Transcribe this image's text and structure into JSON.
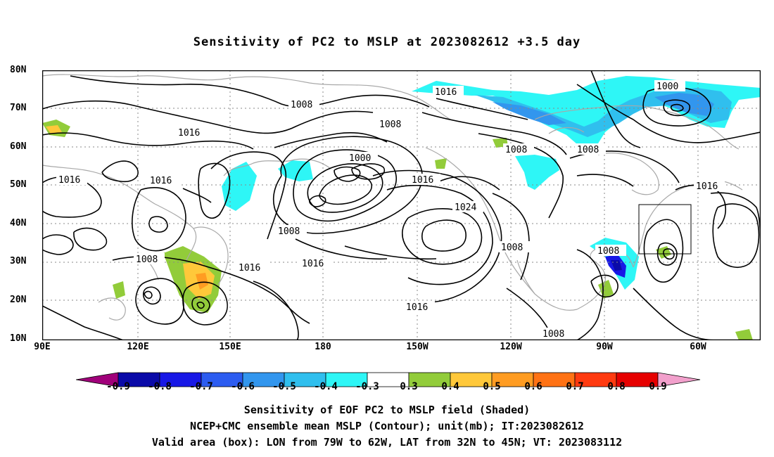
{
  "title": "Sensitivity of PC2 to MSLP at 2023082612 +3.5 day",
  "lat_ticks": [
    "80N",
    "70N",
    "60N",
    "50N",
    "40N",
    "30N",
    "20N",
    "10N"
  ],
  "lon_ticks": [
    "90E",
    "120E",
    "150E",
    "180",
    "150W",
    "120W",
    "90W",
    "60W"
  ],
  "isobar_labels": [
    {
      "text": "1016"
    },
    {
      "text": "1000"
    },
    {
      "text": "1008"
    },
    {
      "text": "1008"
    },
    {
      "text": "1016"
    },
    {
      "text": "1008"
    },
    {
      "text": "1000"
    },
    {
      "text": "1008"
    },
    {
      "text": "1008"
    },
    {
      "text": "1016"
    },
    {
      "text": "1016"
    },
    {
      "text": "1016"
    },
    {
      "text": "1016"
    },
    {
      "text": "1024"
    },
    {
      "text": "1008"
    },
    {
      "text": "1008"
    },
    {
      "text": "1016"
    },
    {
      "text": "1016"
    },
    {
      "text": "1008"
    },
    {
      "text": "1008"
    },
    {
      "text": "1016"
    }
  ],
  "colorbar": {
    "colors": [
      "#a0007a",
      "#0a0aa8",
      "#1818e6",
      "#2c5cf0",
      "#3296ee",
      "#30bfee",
      "#2ef6f6",
      "#ffffff",
      "#92cc3a",
      "#ffc83a",
      "#ff9c22",
      "#ff7214",
      "#ff3a10",
      "#e60000",
      "#f2a0cc"
    ],
    "labels": [
      "-0.9",
      "-0.8",
      "-0.7",
      "-0.6",
      "-0.5",
      "-0.4",
      "-0.3",
      "0.3",
      "0.4",
      "0.5",
      "0.6",
      "0.7",
      "0.8",
      "0.9"
    ]
  },
  "captions": {
    "line1": "Sensitivity of EOF PC2 to MSLP field (Shaded)",
    "line2": "NCEP+CMC ensemble mean MSLP (Contour); unit(mb); IT:2023082612",
    "line3": "Valid area (box): LON from 79W to 62W, LAT from 32N to 45N; VT: 2023083112"
  }
}
